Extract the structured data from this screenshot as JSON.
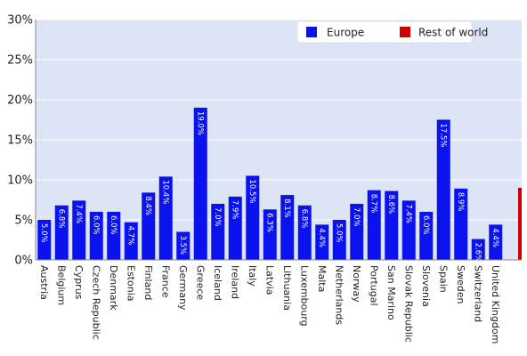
{
  "chart_data": {
    "type": "bar",
    "categories": [
      "Austria",
      "Belgium",
      "Cyprus",
      "Czech Republic",
      "Denmark",
      "Estonia",
      "Finland",
      "France",
      "Germany",
      "Greece",
      "Iceland",
      "Ireland",
      "Italy",
      "Latvia",
      "Lithuania",
      "Luxembourg",
      "Malta",
      "Netherlands",
      "Norway",
      "Portugal",
      "San Marino",
      "Slovak Republic",
      "Slovenia",
      "Spain",
      "Sweden",
      "Switzerland",
      "United Kingdom",
      "Rest of world"
    ],
    "series": [
      {
        "name": "Europe",
        "color": "#0a12ee",
        "values": [
          5.0,
          6.8,
          7.4,
          6.0,
          6.0,
          4.7,
          8.4,
          10.4,
          3.5,
          19.0,
          7.0,
          7.9,
          10.5,
          6.3,
          8.1,
          6.8,
          4.4,
          5.0,
          7.0,
          8.7,
          8.6,
          7.4,
          6.0,
          17.5,
          8.9,
          2.6,
          4.4,
          null
        ]
      },
      {
        "name": "Rest of world",
        "color": "#cc0000",
        "values": [
          null,
          null,
          null,
          null,
          null,
          null,
          null,
          null,
          null,
          null,
          null,
          null,
          null,
          null,
          null,
          null,
          null,
          null,
          null,
          null,
          null,
          null,
          null,
          null,
          null,
          null,
          null,
          9.0
        ]
      }
    ],
    "data_labels": [
      "5.0%",
      "6.8%",
      "7.4%",
      "6.0%",
      "6.0%",
      "4.7%",
      "8.4%",
      "10.4%",
      "3.5%",
      "19.0%",
      "7.0%",
      "7.9%",
      "10.5%",
      "6.3%",
      "8.1%",
      "6.8%",
      "4.4%",
      "5.0%",
      "7.0%",
      "8.7%",
      "8.6%",
      "7.4%",
      "6.0%",
      "17.5%",
      "8.9%",
      "2.6%",
      "4.4%",
      ""
    ],
    "yticks": [
      "0%",
      "5%",
      "10%",
      "15%",
      "20%",
      "25%",
      "30%"
    ],
    "ylim": [
      0,
      30
    ],
    "grid": true,
    "legend": "top-right",
    "plot_bg": "#dde4f5"
  }
}
